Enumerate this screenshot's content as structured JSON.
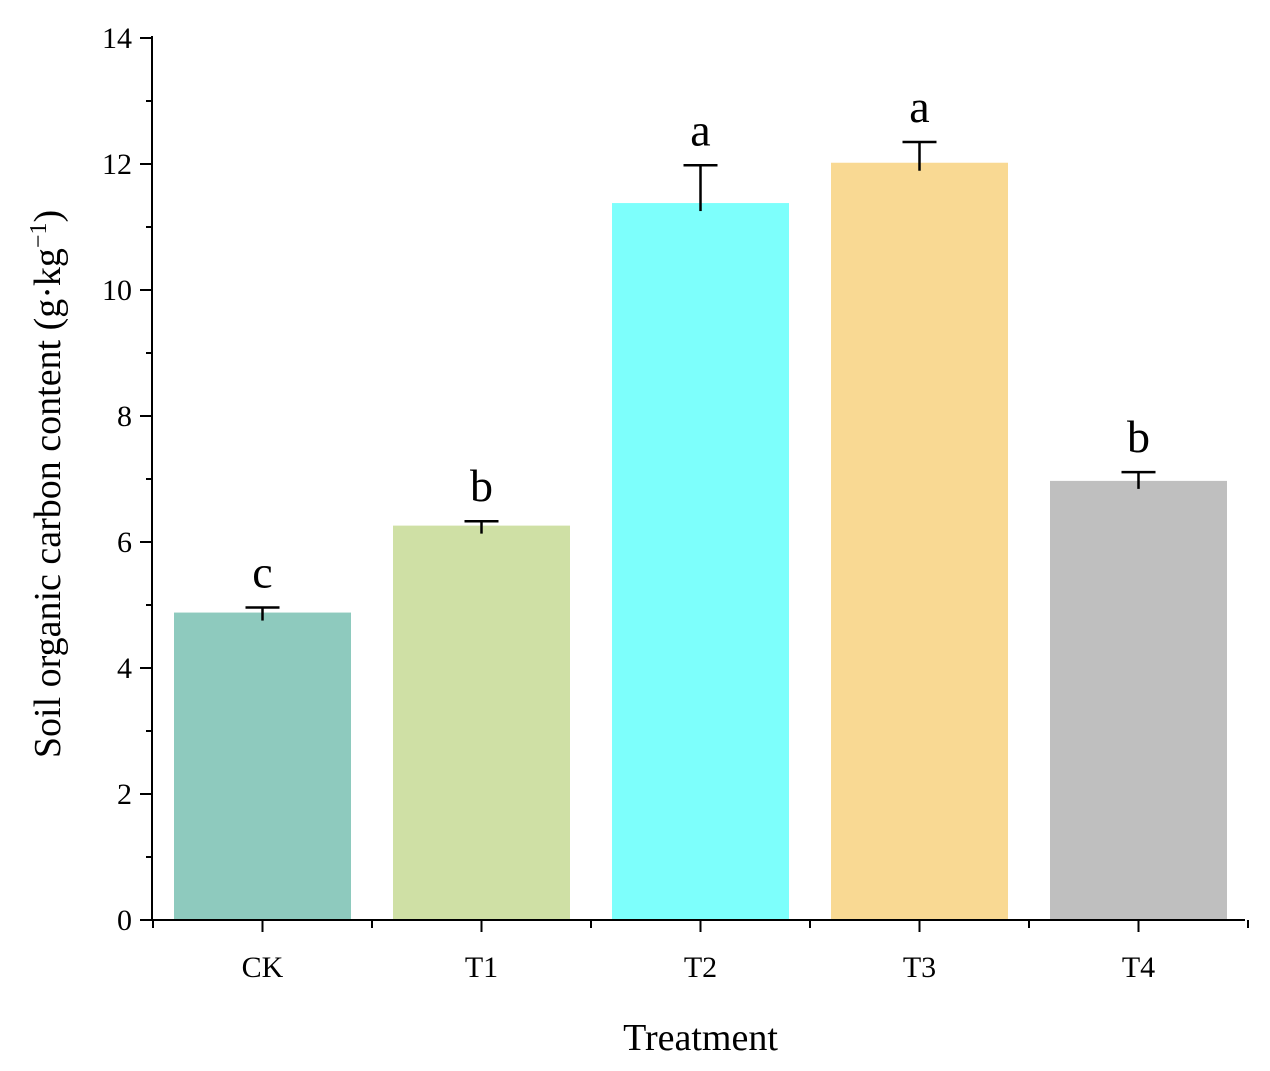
{
  "chart_data": {
    "type": "bar",
    "title": "",
    "xlabel": "Treatment",
    "ylabel": "Soil organic carbon content (g·kg",
    "ylabel_sup": "−1",
    "ylabel_close": ")",
    "categories": [
      "CK",
      "T1",
      "T2",
      "T3",
      "T4"
    ],
    "values": [
      4.88,
      6.26,
      11.38,
      12.02,
      6.97
    ],
    "errors": [
      0.08,
      0.07,
      0.6,
      0.33,
      0.14
    ],
    "significance": [
      "c",
      "b",
      "a",
      "a",
      "b"
    ],
    "colors": [
      "#8ecabe",
      "#cfe0a5",
      "#7dfffc",
      "#f9d993",
      "#bfbfbf"
    ],
    "ylim": [
      0,
      14
    ],
    "yticks": [
      "0",
      "2",
      "4",
      "6",
      "8",
      "10",
      "12",
      "14"
    ],
    "grid": false
  }
}
